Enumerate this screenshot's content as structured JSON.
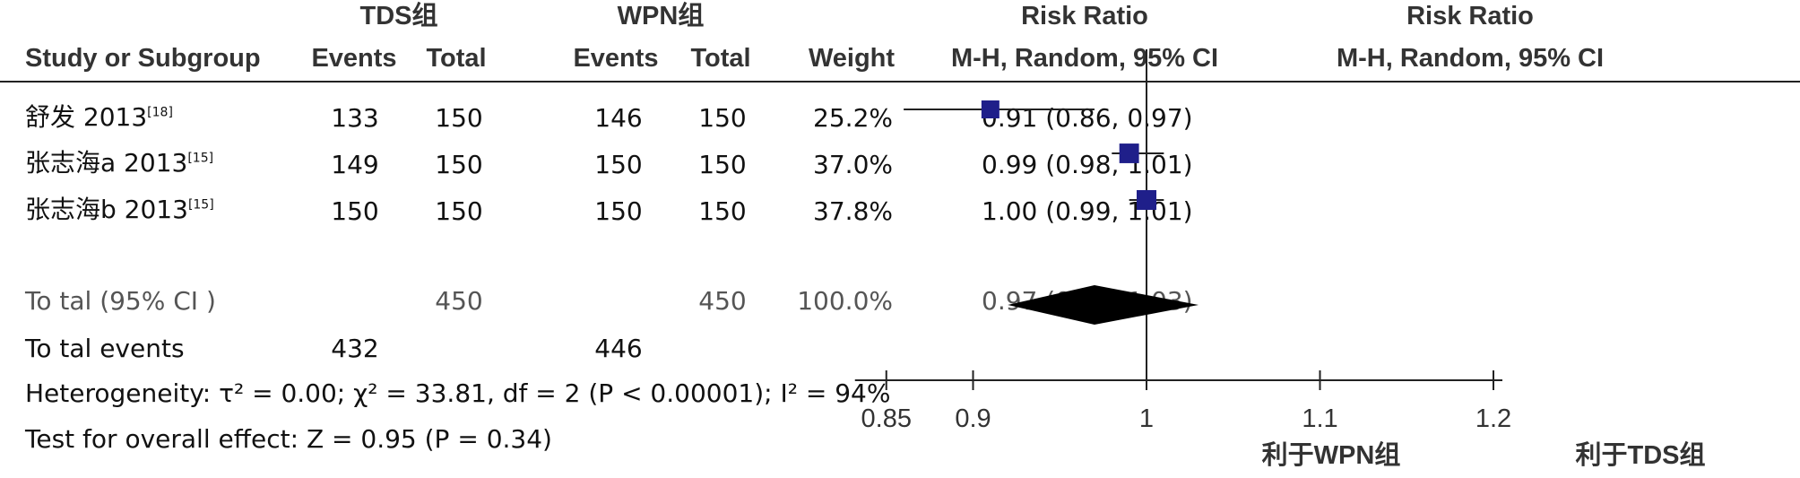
{
  "header": {
    "group1": "TDS组",
    "group2": "WPN组",
    "rr_title": "Risk Ratio",
    "rr_title_plot": "Risk Ratio",
    "study_col": "Study or Subgroup",
    "events1": "Events",
    "total1": "Total",
    "events2": "Events",
    "total2": "Total",
    "weight": "Weight",
    "method": "M-H, Random, 95% CI",
    "method_plot": "M-H, Random, 95% CI"
  },
  "studies": [
    {
      "name": "舒发 2013",
      "ref": "[18]",
      "events1": "133",
      "total1": "150",
      "events2": "146",
      "total2": "150",
      "weight": "25.2%",
      "ci_text": "0.91 (0.86, 0.97)"
    },
    {
      "name": "张志海a 2013",
      "ref": "[15]",
      "events1": "149",
      "total1": "150",
      "events2": "150",
      "total2": "150",
      "weight": "37.0%",
      "ci_text": "0.99 (0.98, 1.01)"
    },
    {
      "name": "张志海b 2013",
      "ref": "[15]",
      "events1": "150",
      "total1": "150",
      "events2": "150",
      "total2": "150",
      "weight": "37.8%",
      "ci_text": "1.00 (0.99, 1.01)"
    }
  ],
  "total": {
    "label": "To tal (95% CI )",
    "total1": "450",
    "total2": "450",
    "weight": "100.0%",
    "ci_text": "0.97 (0.92, 1.03)"
  },
  "total_events": {
    "label": "To tal events",
    "events1": "432",
    "events2": "446"
  },
  "heterogeneity": "Heterogeneity:  τ² = 0.00;  χ² = 33.81, df = 2 (P < 0.00001); I² = 94%",
  "overall_effect": "Test for overall effect: Z = 0.95 (P = 0.34)",
  "favors": {
    "left": "利于WPN组",
    "right": "利于TDS组"
  },
  "colors": {
    "square": "#1f1f8a",
    "diamond": "#000000",
    "line": "#222222"
  },
  "chart_data": {
    "type": "forest",
    "xlim": [
      0.85,
      1.2
    ],
    "ticks": [
      0.85,
      0.9,
      1,
      1.1,
      1.2
    ],
    "tick_labels": [
      "0.85",
      "0.9",
      "1",
      "1.1",
      "1.2"
    ],
    "reference_line": 1,
    "studies": [
      {
        "rr": 0.91,
        "lower": 0.86,
        "upper": 0.97,
        "weight": 25.2
      },
      {
        "rr": 0.99,
        "lower": 0.98,
        "upper": 1.01,
        "weight": 37.0
      },
      {
        "rr": 1.0,
        "lower": 0.99,
        "upper": 1.01,
        "weight": 37.8
      }
    ],
    "pooled": {
      "rr": 0.97,
      "lower": 0.92,
      "upper": 1.03
    }
  }
}
